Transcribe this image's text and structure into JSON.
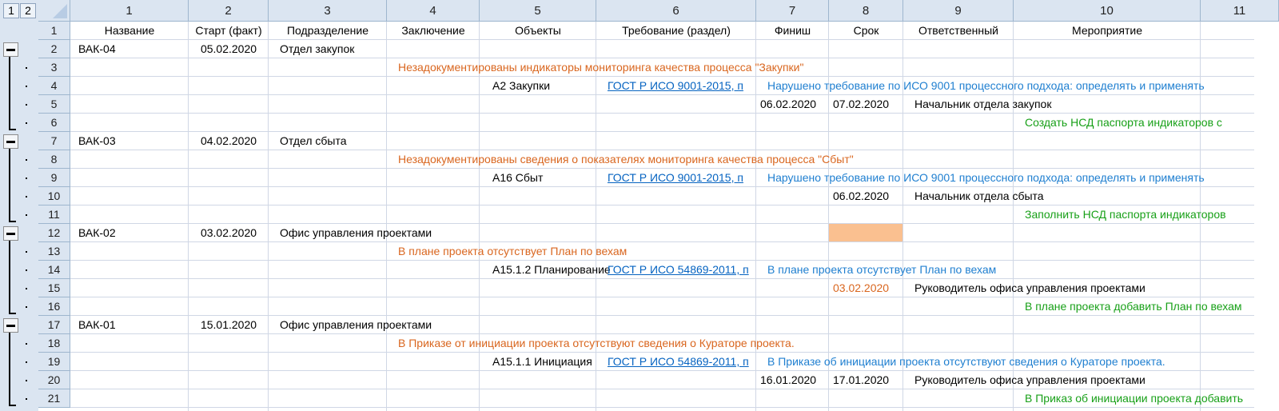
{
  "outline_levels": [
    "1",
    "2"
  ],
  "columns": [
    "1",
    "2",
    "3",
    "4",
    "5",
    "6",
    "7",
    "8",
    "9",
    "10",
    "11"
  ],
  "header_row": {
    "row": "1",
    "cells": [
      "Название",
      "Старт (факт)",
      "Подразделение",
      "Заключение",
      "Объекты",
      "Требование (раздел)",
      "Финиш",
      "Срок",
      "Ответственный",
      "Мероприятие",
      ""
    ]
  },
  "colors": {
    "finding": "#d9661f",
    "requirement": "#1f7fd0",
    "link": "#0563c1",
    "action": "#18a018",
    "highlight": "#fac090"
  },
  "groups": [
    {
      "rows": [
        {
          "row": "2",
          "cells": {
            "c1": "ВАК-04",
            "c2": "05.02.2020",
            "c3": "Отдел закупок"
          }
        },
        {
          "row": "3",
          "cells": {
            "c4": "Незадокументированы индикаторы мониторинга качества процесса \"Закупки\""
          }
        },
        {
          "row": "4",
          "cells": {
            "c5": "А2 Закупки",
            "c6": "ГОСТ Р ИСО 9001-2015, п",
            "c7": "Нарушено требование по ИСО 9001 процессного подхода: определять и применять"
          }
        },
        {
          "row": "5",
          "cells": {
            "c7": "06.02.2020",
            "c8": "07.02.2020",
            "c9": "Начальник отдела закупок"
          }
        },
        {
          "row": "6",
          "cells": {
            "c10": "Создать НСД паспорта индикаторов с"
          }
        }
      ]
    },
    {
      "rows": [
        {
          "row": "7",
          "cells": {
            "c1": "ВАК-03",
            "c2": "04.02.2020",
            "c3": "Отдел сбыта"
          }
        },
        {
          "row": "8",
          "cells": {
            "c4": "Незадокументированы сведения о показателях мониторинга качества процесса \"Сбыт\""
          }
        },
        {
          "row": "9",
          "cells": {
            "c5": "А16 Сбыт",
            "c6": "ГОСТ Р ИСО 9001-2015, п",
            "c7": "Нарушено требование по ИСО 9001 процессного подхода: определять и применять"
          }
        },
        {
          "row": "10",
          "cells": {
            "c8": "06.02.2020",
            "c9": "Начальник отдела сбыта"
          }
        },
        {
          "row": "11",
          "cells": {
            "c10": "Заполнить НСД паспорта индикаторов"
          }
        }
      ]
    },
    {
      "rows": [
        {
          "row": "12",
          "cells": {
            "c1": "ВАК-02",
            "c2": "03.02.2020",
            "c3": "Офис управления проектами"
          }
        },
        {
          "row": "13",
          "cells": {
            "c4": "В плане проекта отсутствует План по вехам"
          }
        },
        {
          "row": "14",
          "cells": {
            "c5": "А15.1.2 Планирование",
            "c6": "ГОСТ Р ИСО 54869-2011, п",
            "c7": "В плане проекта отсутствует План по вехам"
          }
        },
        {
          "row": "15",
          "cells": {
            "c8": "03.02.2020",
            "c9": "Руководитель офиса управления проектами"
          }
        },
        {
          "row": "16",
          "cells": {
            "c10": "В плане проекта добавить План по вехам"
          }
        }
      ]
    },
    {
      "rows": [
        {
          "row": "17",
          "cells": {
            "c1": "ВАК-01",
            "c2": "15.01.2020",
            "c3": "Офис управления проектами"
          }
        },
        {
          "row": "18",
          "cells": {
            "c4": "В Приказе от инициации проекта отсутствуют сведения о Кураторе проекта."
          }
        },
        {
          "row": "19",
          "cells": {
            "c5": "А15.1.1 Инициация",
            "c6": "ГОСТ Р ИСО 54869-2011, п",
            "c7": "В Приказе об инициации проекта отсутствуют сведения о Кураторе проекта."
          }
        },
        {
          "row": "20",
          "cells": {
            "c7": "16.01.2020",
            "c8": "17.01.2020",
            "c9": "Руководитель офиса управления проектами"
          }
        },
        {
          "row": "21",
          "cells": {
            "c10": "В Приказ об инициации проекта добавить"
          }
        }
      ]
    }
  ]
}
